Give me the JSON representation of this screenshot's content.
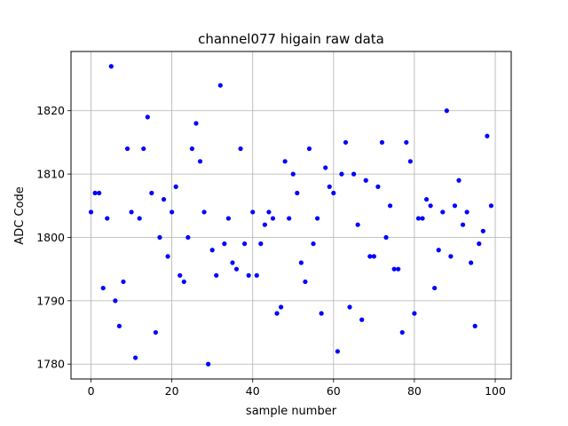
{
  "chart_data": {
    "type": "scatter",
    "title": "channel077 higain raw data",
    "xlabel": "sample number",
    "ylabel": "ADC Code",
    "xlim": [
      -4.95,
      103.95
    ],
    "ylim": [
      1777.65,
      1829.35
    ],
    "xticks": [
      0,
      20,
      40,
      60,
      80,
      100
    ],
    "yticks": [
      1780,
      1790,
      1800,
      1810,
      1820
    ],
    "grid": true,
    "marker_color": "#0000ff",
    "series": [
      {
        "x": [
          0,
          1,
          2,
          3,
          4,
          5,
          6,
          7,
          8,
          9,
          10,
          11,
          12,
          13,
          14,
          15,
          16,
          17,
          18,
          19,
          20,
          21,
          22,
          23,
          24,
          25,
          26,
          27,
          28,
          29,
          30,
          31,
          32,
          33,
          34,
          35,
          36,
          37,
          38,
          39,
          40,
          41,
          42,
          43,
          44,
          45,
          46,
          47,
          48,
          49,
          50,
          51,
          52,
          53,
          54,
          55,
          56,
          57,
          58,
          59,
          60,
          61,
          62,
          63,
          64,
          65,
          66,
          67,
          68,
          69,
          70,
          71,
          72,
          73,
          74,
          75,
          76,
          77,
          78,
          79,
          80,
          81,
          82,
          83,
          84,
          85,
          86,
          87,
          88,
          89,
          90,
          91,
          92,
          93,
          94,
          95,
          96,
          97,
          98,
          99
        ],
        "y": [
          1804,
          1807,
          1807,
          1792,
          1803,
          1827,
          1790,
          1786,
          1793,
          1814,
          1804,
          1781,
          1803,
          1814,
          1819,
          1807,
          1785,
          1800,
          1806,
          1797,
          1804,
          1808,
          1794,
          1793,
          1800,
          1814,
          1818,
          1812,
          1804,
          1780,
          1798,
          1794,
          1824,
          1799,
          1803,
          1796,
          1795,
          1814,
          1799,
          1794,
          1804,
          1794,
          1799,
          1802,
          1804,
          1803,
          1788,
          1789,
          1812,
          1803,
          1810,
          1807,
          1796,
          1793,
          1814,
          1799,
          1803,
          1788,
          1811,
          1808,
          1807,
          1782,
          1810,
          1815,
          1789,
          1810,
          1802,
          1787,
          1809,
          1797,
          1797,
          1808,
          1815,
          1800,
          1805,
          1795,
          1795,
          1785,
          1815,
          1812,
          1788,
          1803,
          1803,
          1806,
          1805,
          1792,
          1798,
          1804,
          1820,
          1797,
          1805,
          1809,
          1802,
          1804,
          1796,
          1786,
          1799,
          1801,
          1816,
          1805
        ]
      }
    ]
  }
}
